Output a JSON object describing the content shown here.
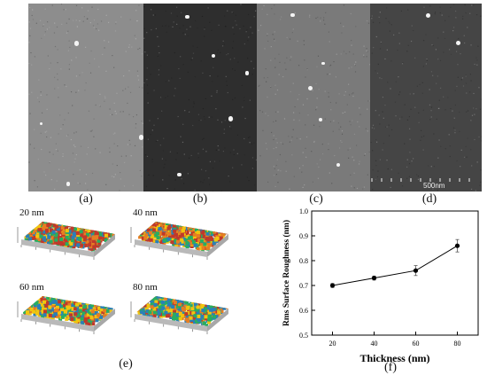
{
  "figure": {
    "sem_panels": [
      {
        "letter": "(a)",
        "shade": "#8d8d8d",
        "dots": [
          [
            0.4,
            0.2
          ],
          [
            0.1,
            0.63
          ],
          [
            0.96,
            0.7
          ],
          [
            0.33,
            0.95
          ]
        ]
      },
      {
        "letter": "(b)",
        "shade": "#2e2e2e",
        "dots": [
          [
            0.37,
            0.06
          ],
          [
            0.6,
            0.27
          ],
          [
            0.9,
            0.36
          ],
          [
            0.3,
            0.9
          ],
          [
            0.75,
            0.6
          ]
        ]
      },
      {
        "letter": "(c)",
        "shade": "#7a7a7a",
        "dots": [
          [
            0.57,
            0.31
          ],
          [
            0.45,
            0.44
          ],
          [
            0.55,
            0.61
          ],
          [
            0.7,
            0.85
          ],
          [
            0.3,
            0.05
          ]
        ]
      },
      {
        "letter": "(d)",
        "shade": "#454545",
        "dots": [
          [
            0.77,
            0.2
          ],
          [
            0.5,
            0.05
          ]
        ]
      }
    ],
    "scale_bar_label": "500nm",
    "afm_panels": [
      {
        "label": "20 nm",
        "palette": [
          "#c0392b",
          "#e67e22",
          "#f1c40f",
          "#27ae60",
          "#2980b9"
        ],
        "weights": [
          0.35,
          0.2,
          0.15,
          0.2,
          0.1
        ]
      },
      {
        "label": "40 nm",
        "palette": [
          "#c0392b",
          "#e67e22",
          "#f1c40f",
          "#27ae60",
          "#2980b9"
        ],
        "weights": [
          0.25,
          0.2,
          0.2,
          0.22,
          0.13
        ]
      },
      {
        "label": "60 nm",
        "palette": [
          "#c0392b",
          "#e67e22",
          "#f1c40f",
          "#27ae60",
          "#2980b9"
        ],
        "weights": [
          0.12,
          0.15,
          0.28,
          0.2,
          0.25
        ]
      },
      {
        "label": "80 nm",
        "palette": [
          "#c0392b",
          "#e67e22",
          "#f1c40f",
          "#27ae60",
          "#2980b9"
        ],
        "weights": [
          0.12,
          0.12,
          0.2,
          0.2,
          0.36
        ]
      }
    ],
    "afm_letter": "(e)",
    "chart_letter": "(f)"
  },
  "chart_data": {
    "type": "line",
    "x": [
      20,
      40,
      60,
      80
    ],
    "series": [
      {
        "values": [
          0.7,
          0.73,
          0.76,
          0.86
        ],
        "errors": [
          0.008,
          0.008,
          0.02,
          0.025
        ]
      }
    ],
    "xlabel": "Thickness (nm)",
    "ylabel": "Rms Surface Roughness (nm)",
    "xlim": [
      10,
      90
    ],
    "ylim": [
      0.5,
      1.0
    ],
    "xticks": [
      20,
      40,
      60,
      80
    ],
    "yticks": [
      0.5,
      0.6,
      0.7,
      0.8,
      0.9,
      1.0
    ],
    "ytick_labels": [
      "0.5",
      "0.6",
      "0.7",
      "0.8",
      "0.9",
      "1.0"
    ],
    "marker_color": "#000000",
    "grid": false
  }
}
